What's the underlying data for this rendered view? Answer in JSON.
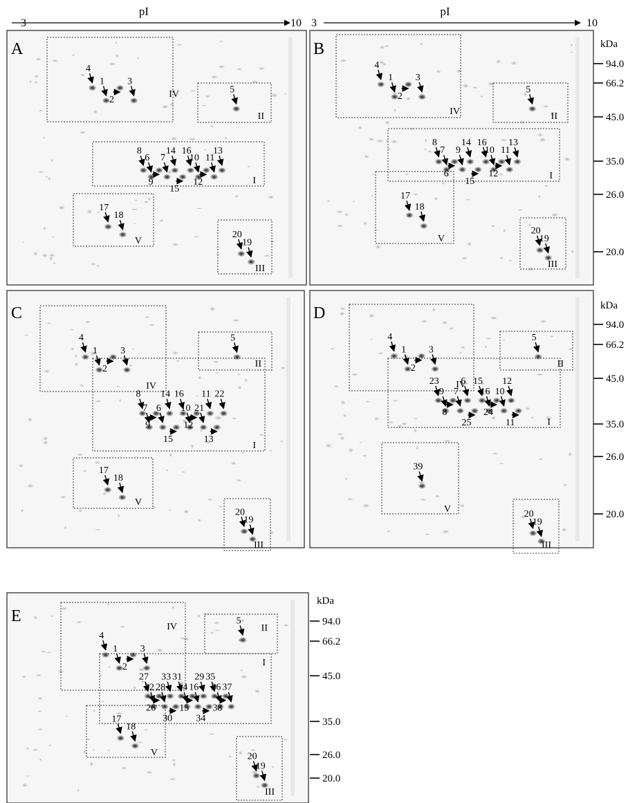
{
  "axis": {
    "pI_label": "pI",
    "pI_start": "3",
    "pI_end": "10",
    "mw_unit": "kDa"
  },
  "mw_markers": [
    "94.0",
    "66.2",
    "45.0",
    "35.0",
    "26.0",
    "20.0"
  ],
  "panels": [
    {
      "letter": "A",
      "boxes": [
        {
          "roman": "IV",
          "spots": [
            "4",
            "1",
            "2",
            "3"
          ]
        },
        {
          "roman": "II",
          "spots": [
            "5"
          ]
        },
        {
          "roman": "I",
          "spots": [
            "8",
            "6",
            "9",
            "7",
            "14",
            "15",
            "16",
            "10",
            "12",
            "11",
            "13"
          ]
        },
        {
          "roman": "V",
          "spots": [
            "17",
            "18"
          ]
        },
        {
          "roman": "III",
          "spots": [
            "20",
            "19"
          ]
        }
      ]
    },
    {
      "letter": "B",
      "boxes": [
        {
          "roman": "IV",
          "spots": [
            "4",
            "1",
            "2",
            "3"
          ]
        },
        {
          "roman": "II",
          "spots": [
            "5"
          ]
        },
        {
          "roman": "I",
          "spots": [
            "8",
            "7",
            "6",
            "9",
            "14",
            "15",
            "16",
            "10",
            "12",
            "11",
            "13"
          ]
        },
        {
          "roman": "V",
          "spots": [
            "17",
            "18"
          ]
        },
        {
          "roman": "III",
          "spots": [
            "20",
            "19"
          ]
        }
      ]
    },
    {
      "letter": "C",
      "boxes": [
        {
          "roman": "IV",
          "spots": [
            "4",
            "1",
            "2",
            "3"
          ]
        },
        {
          "roman": "II",
          "spots": [
            "5"
          ]
        },
        {
          "roman": "I",
          "spots": [
            "8",
            "7",
            "9",
            "6",
            "14",
            "15",
            "16",
            "10",
            "12",
            "21",
            "11",
            "13",
            "22"
          ]
        },
        {
          "roman": "V",
          "spots": [
            "17",
            "18"
          ]
        },
        {
          "roman": "III",
          "spots": [
            "20",
            "19"
          ]
        }
      ]
    },
    {
      "letter": "D",
      "boxes": [
        {
          "roman": "IV",
          "spots": [
            "4",
            "1",
            "2",
            "3"
          ]
        },
        {
          "roman": "II",
          "spots": [
            "5"
          ]
        },
        {
          "roman": "I",
          "spots": [
            "23",
            "9",
            "8",
            "7",
            "6",
            "25",
            "15",
            "16",
            "24",
            "10",
            "12",
            "11"
          ]
        },
        {
          "roman": "V",
          "spots": [
            "39"
          ]
        },
        {
          "roman": "III",
          "spots": [
            "20",
            "19"
          ]
        }
      ]
    },
    {
      "letter": "E",
      "boxes": [
        {
          "roman": "IV",
          "spots": [
            "4",
            "1",
            "2",
            "3"
          ]
        },
        {
          "roman": "II",
          "spots": [
            "5"
          ]
        },
        {
          "roman": "I",
          "spots": [
            "27",
            "32",
            "26",
            "28",
            "33",
            "30",
            "31",
            "14",
            "15",
            "16",
            "29",
            "34",
            "35",
            "36",
            "38",
            "37"
          ]
        },
        {
          "roman": "V",
          "spots": [
            "17",
            "18"
          ]
        },
        {
          "roman": "III",
          "spots": [
            "20",
            "19"
          ]
        }
      ]
    }
  ]
}
